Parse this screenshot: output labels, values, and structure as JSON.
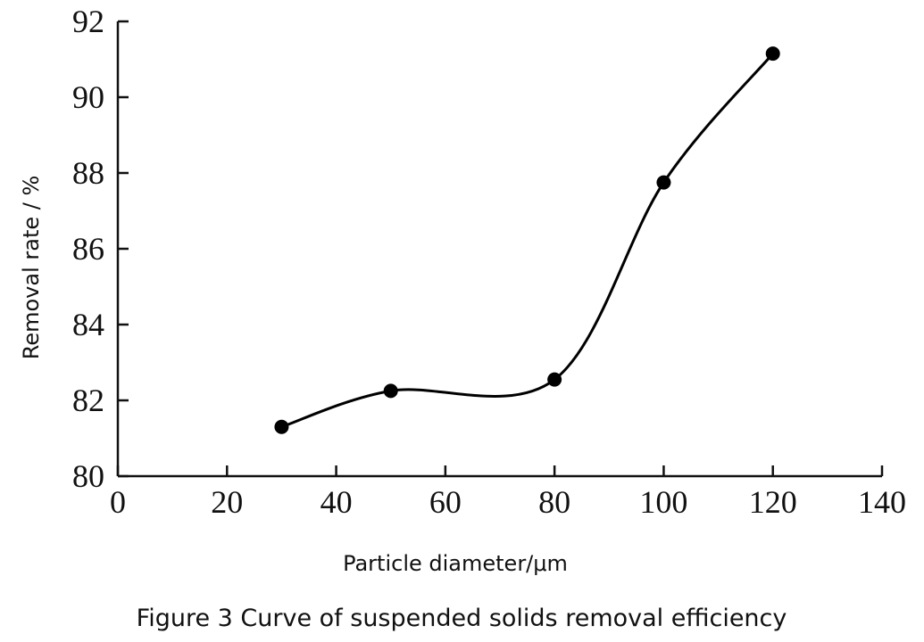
{
  "chart_data": {
    "type": "line",
    "title": "Figure 3 Curve of suspended solids removal efficiency",
    "xlabel": "Particle diameter/μm",
    "ylabel": "Removal rate / %",
    "xlim": [
      0,
      140
    ],
    "ylim": [
      80,
      92
    ],
    "xticks": [
      0,
      20,
      40,
      60,
      80,
      100,
      120,
      140
    ],
    "yticks": [
      80,
      82,
      84,
      86,
      88,
      90,
      92
    ],
    "grid": false,
    "smooth": true,
    "series": [
      {
        "x": [
          30,
          50,
          80,
          100,
          120
        ],
        "y": [
          81.3,
          82.25,
          82.55,
          87.75,
          91.15
        ]
      }
    ],
    "colors": {
      "line": "#000000",
      "marker": "#000000",
      "axis": "#111111"
    }
  }
}
